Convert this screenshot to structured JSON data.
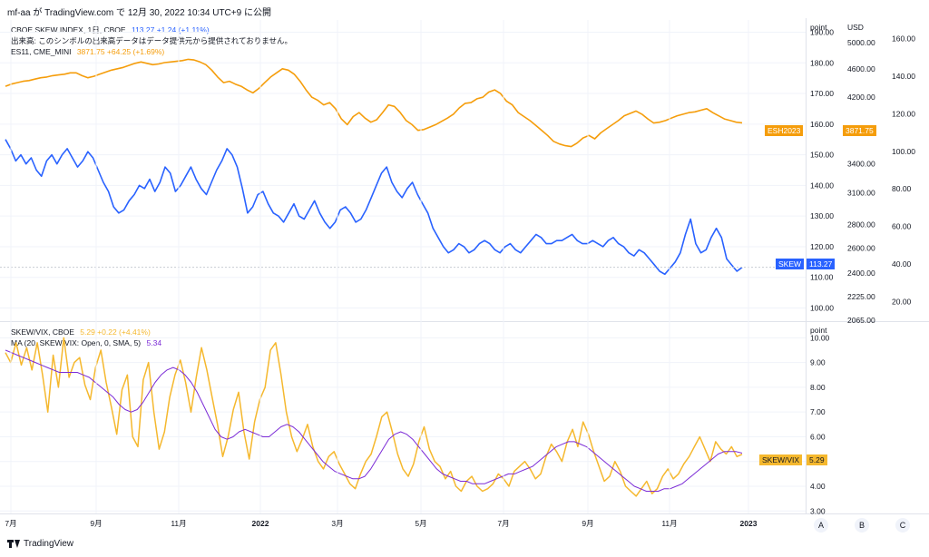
{
  "header": {
    "title": "mf-aa が TradingView.com で 12月 30, 2022 10:34 UTC+9 に公開"
  },
  "legend_top": {
    "skew": {
      "label": "CBOE SKEW INDEX, 1日, CBOE",
      "value": "113.27  +1.24 (+1.11%)"
    },
    "volume_note": "出来高: このシンボルの出来高データはデータ提供元から提供されておりません。",
    "es": {
      "label": "ES11, CME_MINI",
      "value": "3871.75  +64.25 (+1.69%)"
    }
  },
  "legend_bottom": {
    "ratio": {
      "label": "SKEW/VIX, CBOE",
      "value": "5.29  +0.22 (+4.41%)"
    },
    "ma": {
      "label": "MA (20, SKEW/VIX: Open, 0, SMA, 5)",
      "value": "5.34"
    }
  },
  "tags": {
    "esh": "ESH2023",
    "esh_val": "3871.75",
    "skew": "SKEW",
    "skew_val": "113.27",
    "ratio": "SKEW/VIX",
    "ratio_val": "5.29"
  },
  "axes_headers": {
    "point": "point",
    "usd": "USD",
    "point2": "point"
  },
  "x_axis_labels": [
    "7月",
    "9月",
    "11月",
    "2022",
    "3月",
    "5月",
    "7月",
    "9月",
    "11月",
    "2023"
  ],
  "abc": [
    "A",
    "B",
    "C"
  ],
  "footer": {
    "brand": "TradingView"
  },
  "colors": {
    "skew": "#2962ff",
    "es": "#f59d0b",
    "ratio": "#f5b82e",
    "ma": "#7b2bd6",
    "grid": "#f0f3fa"
  },
  "chart_data": [
    {
      "type": "line",
      "title": "CBOE SKEW INDEX / ES11",
      "x_range": [
        "2021-07",
        "2022-12-30"
      ],
      "y_axis_point": {
        "ticks": [
          100,
          110,
          120,
          130,
          140,
          150,
          160,
          170,
          180,
          190
        ],
        "ylim": [
          96,
          194
        ]
      },
      "y_axis_usd": {
        "ticks": [
          2065,
          2225,
          2400,
          2600,
          2800,
          3100,
          3400,
          3800,
          4200,
          4600,
          5000
        ],
        "labels": [
          "2065.00",
          "2225.00",
          "2400.00",
          "2600.00",
          "2800.00",
          "3100.00",
          "3400.00",
          "3800.00",
          "4200.00",
          "4600.00",
          "5000.00"
        ]
      },
      "y_axis_right": {
        "ticks": [
          20,
          40,
          60,
          80,
          100,
          120,
          140,
          160
        ],
        "labels": [
          "20.00",
          "40.00",
          "60.00",
          "80.00",
          "100.00",
          "120.00",
          "140.00",
          "160.00"
        ]
      },
      "series": [
        {
          "name": "SKEW",
          "axis": "point",
          "values": [
            155,
            152,
            148,
            150,
            147,
            149,
            145,
            143,
            148,
            150,
            147,
            150,
            152,
            149,
            146,
            148,
            151,
            149,
            145,
            141,
            138,
            133,
            131,
            132,
            135,
            137,
            140,
            139,
            142,
            138,
            141,
            146,
            144,
            138,
            140,
            143,
            146,
            142,
            139,
            137,
            141,
            145,
            148,
            152,
            150,
            146,
            139,
            131,
            133,
            137,
            138,
            134,
            131,
            130,
            128,
            131,
            134,
            130,
            129,
            132,
            135,
            131,
            128,
            126,
            128,
            132,
            133,
            131,
            128,
            129,
            132,
            136,
            140,
            144,
            146,
            141,
            138,
            136,
            139,
            141,
            137,
            134,
            131,
            126,
            123,
            120,
            118,
            119,
            121,
            120,
            118,
            119,
            121,
            122,
            121,
            119,
            118,
            120,
            121,
            119,
            118,
            120,
            122,
            124,
            123,
            121,
            121,
            122,
            122,
            123,
            124,
            122,
            121,
            121,
            122,
            121,
            120,
            122,
            123,
            121,
            120,
            118,
            117,
            119,
            118,
            116,
            114,
            112,
            111,
            113,
            115,
            118,
            124,
            129,
            121,
            118,
            119,
            123,
            126,
            123,
            116,
            114,
            112,
            113.27
          ]
        },
        {
          "name": "ES11",
          "axis": "usd",
          "values": [
            4350,
            4380,
            4400,
            4420,
            4430,
            4450,
            4470,
            4480,
            4500,
            4510,
            4520,
            4540,
            4540,
            4500,
            4470,
            4490,
            4520,
            4550,
            4580,
            4600,
            4620,
            4650,
            4680,
            4700,
            4680,
            4660,
            4670,
            4690,
            4700,
            4710,
            4720,
            4740,
            4730,
            4700,
            4660,
            4580,
            4480,
            4400,
            4420,
            4380,
            4350,
            4300,
            4260,
            4320,
            4400,
            4480,
            4540,
            4600,
            4580,
            4520,
            4420,
            4300,
            4200,
            4160,
            4100,
            4130,
            4050,
            3920,
            3850,
            3950,
            4000,
            3930,
            3880,
            3910,
            4000,
            4100,
            4080,
            4000,
            3900,
            3850,
            3780,
            3790,
            3820,
            3850,
            3890,
            3930,
            3980,
            4060,
            4120,
            4130,
            4180,
            4200,
            4270,
            4300,
            4250,
            4150,
            4100,
            4000,
            3950,
            3900,
            3840,
            3780,
            3720,
            3650,
            3620,
            3600,
            3590,
            3630,
            3690,
            3720,
            3680,
            3750,
            3800,
            3850,
            3900,
            3960,
            3990,
            4020,
            3980,
            3920,
            3870,
            3880,
            3900,
            3930,
            3960,
            3980,
            4000,
            4010,
            4030,
            4050,
            4000,
            3960,
            3920,
            3900,
            3880,
            3871.75
          ]
        }
      ]
    },
    {
      "type": "line",
      "title": "SKEW/VIX",
      "y_axis_point": {
        "ticks": [
          3,
          4,
          5,
          6,
          7,
          8,
          9,
          10
        ],
        "labels": [
          "3.00",
          "4.00",
          "5.00",
          "6.00",
          "7.00",
          "8.00",
          "9.00",
          "10.00"
        ],
        "ylim": [
          2.9,
          10.6
        ]
      },
      "series": [
        {
          "name": "SKEW/VIX",
          "values": [
            9.4,
            9.0,
            9.8,
            8.9,
            9.6,
            8.7,
            9.8,
            8.5,
            7.0,
            9.3,
            8.0,
            10.0,
            8.4,
            9.0,
            9.2,
            8.1,
            7.5,
            8.8,
            9.5,
            8.2,
            7.2,
            6.1,
            7.9,
            8.5,
            6.0,
            5.6,
            8.3,
            9.0,
            7.0,
            5.5,
            6.2,
            7.6,
            8.5,
            9.1,
            8.2,
            7.0,
            8.4,
            9.6,
            8.7,
            7.6,
            6.5,
            5.2,
            6.0,
            7.1,
            7.8,
            6.2,
            5.1,
            6.6,
            7.5,
            8.0,
            9.5,
            9.8,
            8.5,
            7.0,
            6.0,
            5.4,
            5.9,
            6.5,
            5.6,
            5.0,
            4.7,
            5.2,
            5.4,
            4.9,
            4.5,
            4.1,
            3.9,
            4.5,
            5.0,
            5.3,
            6.0,
            6.8,
            7.0,
            6.2,
            5.3,
            4.7,
            4.4,
            4.9,
            5.8,
            6.4,
            5.5,
            5.0,
            4.8,
            4.3,
            4.6,
            4.0,
            3.8,
            4.2,
            4.4,
            4.0,
            3.8,
            3.9,
            4.1,
            4.5,
            4.3,
            4.0,
            4.6,
            4.8,
            5.0,
            4.7,
            4.3,
            4.5,
            5.2,
            5.7,
            5.4,
            5.0,
            5.8,
            6.3,
            5.6,
            6.6,
            6.1,
            5.4,
            4.8,
            4.2,
            4.4,
            5.0,
            4.6,
            4.0,
            3.8,
            3.6,
            3.9,
            4.2,
            3.7,
            3.9,
            4.4,
            4.7,
            4.3,
            4.5,
            4.9,
            5.2,
            5.6,
            6.0,
            5.5,
            5.0,
            5.8,
            5.5,
            5.3,
            5.6,
            5.2,
            5.29
          ]
        },
        {
          "name": "MA (20, SKEW/VIX: Open, 0, SMA, 5)",
          "values": [
            9.5,
            9.4,
            9.3,
            9.2,
            9.1,
            9.0,
            8.9,
            8.8,
            8.7,
            8.6,
            8.6,
            8.6,
            8.6,
            8.5,
            8.4,
            8.2,
            8.0,
            7.8,
            7.6,
            7.3,
            7.1,
            7.0,
            7.1,
            7.4,
            7.8,
            8.2,
            8.5,
            8.7,
            8.8,
            8.7,
            8.5,
            8.2,
            7.8,
            7.3,
            6.8,
            6.3,
            6.0,
            5.9,
            6.0,
            6.2,
            6.3,
            6.2,
            6.1,
            6.0,
            6.0,
            6.2,
            6.4,
            6.5,
            6.4,
            6.2,
            5.9,
            5.6,
            5.3,
            5.0,
            4.8,
            4.6,
            4.5,
            4.4,
            4.3,
            4.3,
            4.4,
            4.7,
            5.1,
            5.5,
            5.9,
            6.1,
            6.2,
            6.1,
            5.9,
            5.6,
            5.3,
            5.0,
            4.7,
            4.5,
            4.4,
            4.3,
            4.2,
            4.2,
            4.1,
            4.1,
            4.1,
            4.2,
            4.3,
            4.4,
            4.5,
            4.5,
            4.6,
            4.7,
            4.8,
            5.0,
            5.2,
            5.4,
            5.6,
            5.7,
            5.8,
            5.8,
            5.7,
            5.6,
            5.4,
            5.2,
            5.0,
            4.8,
            4.6,
            4.4,
            4.2,
            4.0,
            3.9,
            3.8,
            3.8,
            3.8,
            3.9,
            3.9,
            4.0,
            4.1,
            4.3,
            4.5,
            4.7,
            4.9,
            5.1,
            5.3,
            5.4,
            5.4,
            5.4,
            5.34
          ]
        }
      ]
    }
  ]
}
